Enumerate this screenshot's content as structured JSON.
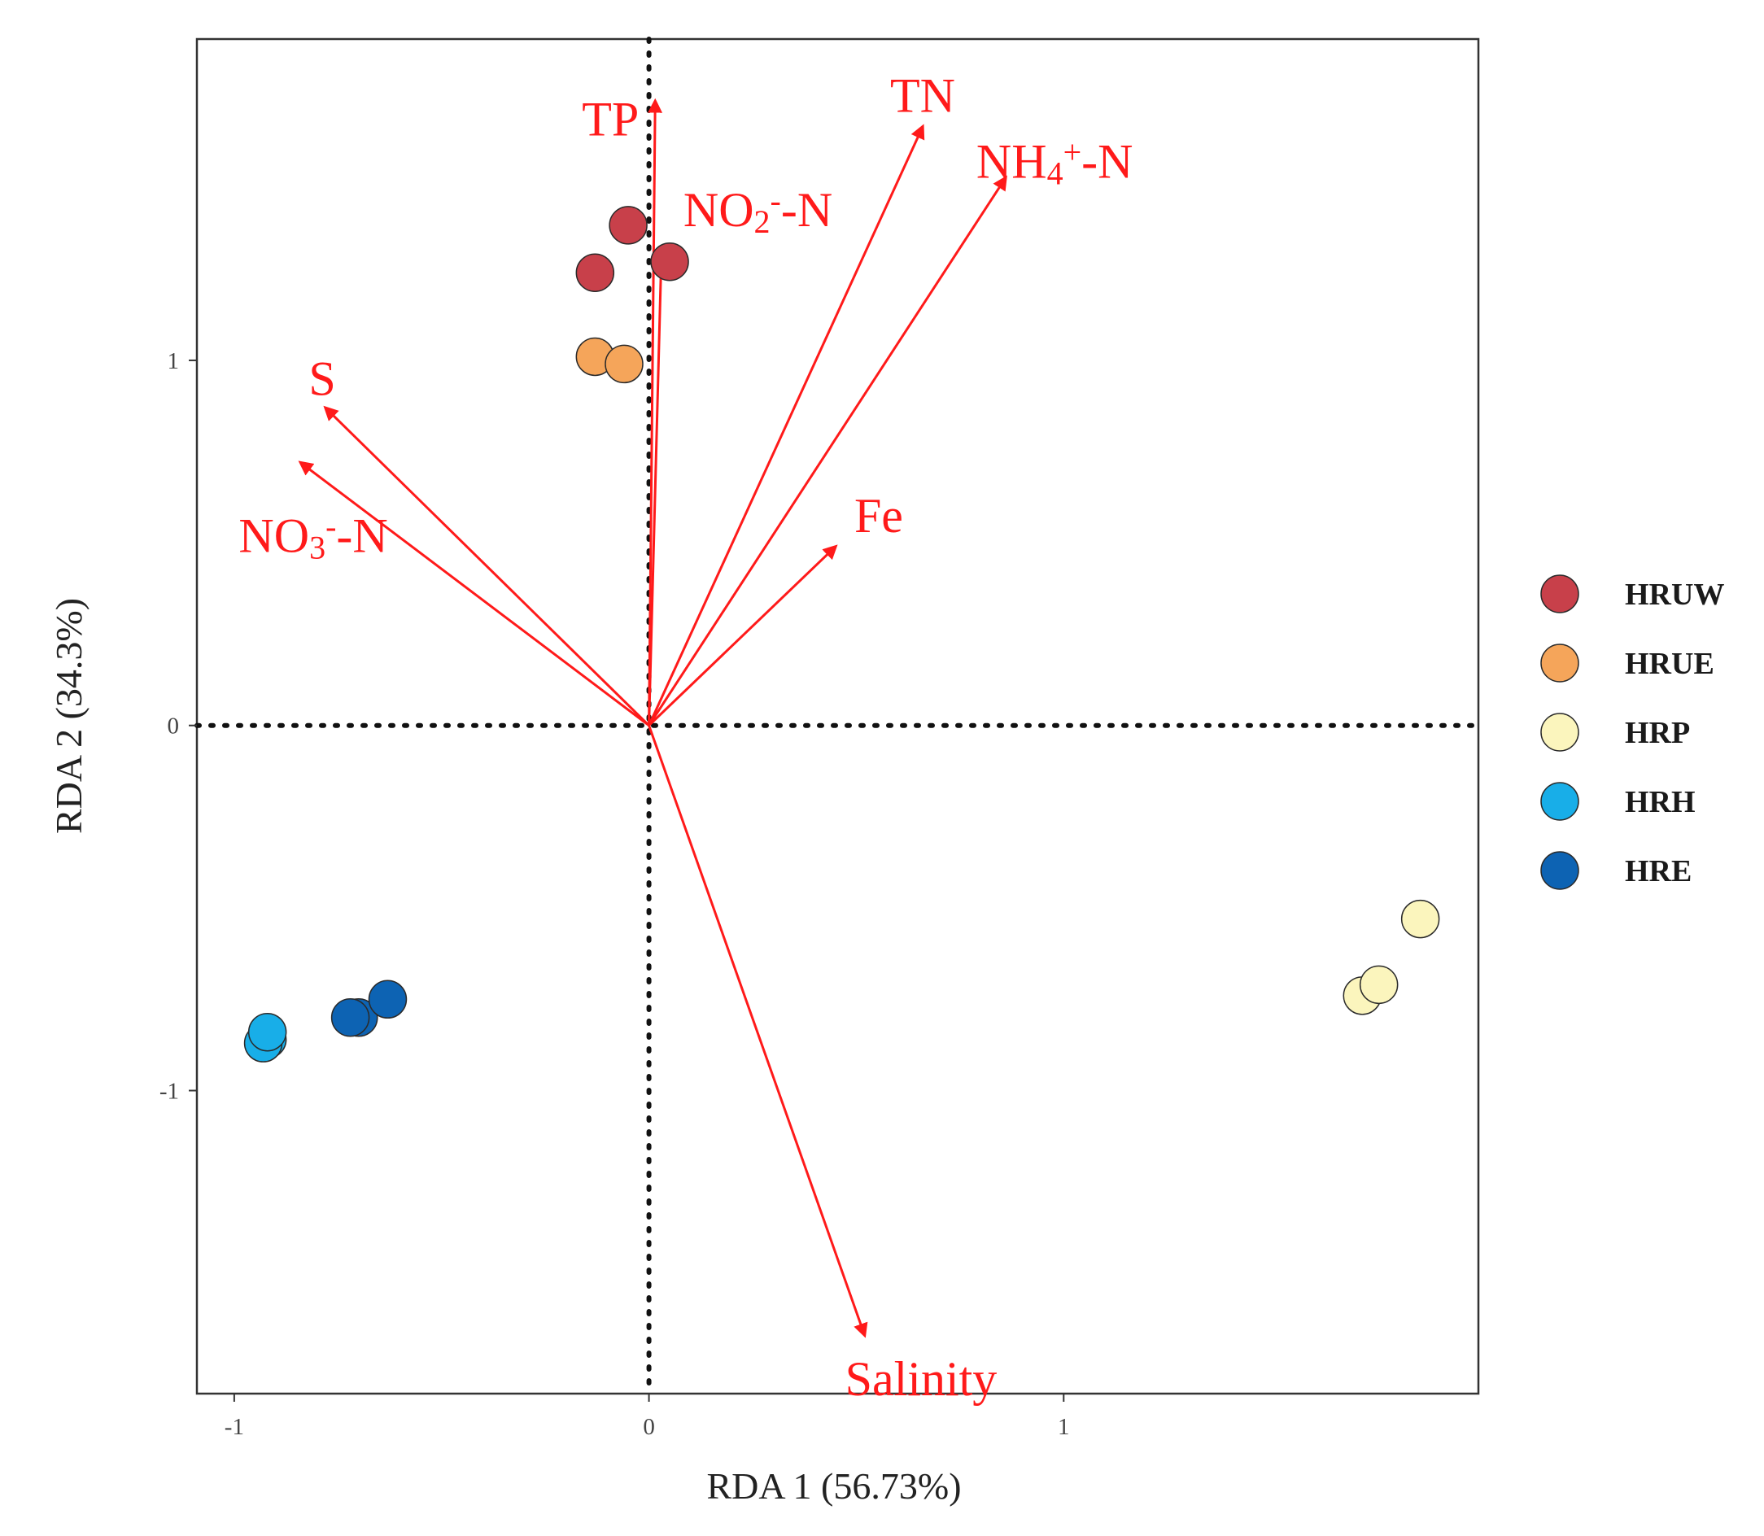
{
  "chart_data": {
    "type": "scatter",
    "subtype": "rda-biplot",
    "title": "",
    "xlabel": "RDA 1 (56.73%)",
    "ylabel": "RDA 2 (34.3%)",
    "xlim": [
      -1.09,
      2.0
    ],
    "ylim": [
      -1.83,
      1.88
    ],
    "xticks": [
      {
        "value": -1,
        "label": "-1"
      },
      {
        "value": 0,
        "label": "0"
      },
      {
        "value": 1,
        "label": "1"
      }
    ],
    "yticks": [
      {
        "value": -1,
        "label": "-1"
      },
      {
        "value": 0,
        "label": "0"
      },
      {
        "value": 1,
        "label": "1"
      }
    ],
    "grid": false,
    "reference_lines": {
      "x": 0,
      "y": 0,
      "style": "dotted"
    },
    "legend_position": "right",
    "series": [
      {
        "name": "HRUW",
        "color": "#c8404a",
        "points": [
          {
            "x": -0.05,
            "y": 1.37
          },
          {
            "x": -0.13,
            "y": 1.24
          },
          {
            "x": 0.05,
            "y": 1.27
          }
        ]
      },
      {
        "name": "HRUE",
        "color": "#f5a55a",
        "points": [
          {
            "x": -0.13,
            "y": 1.01
          },
          {
            "x": -0.06,
            "y": 0.99
          }
        ]
      },
      {
        "name": "HRP",
        "color": "#fbf5bd",
        "points": [
          {
            "x": 1.86,
            "y": -0.53
          },
          {
            "x": 1.72,
            "y": -0.74
          },
          {
            "x": 1.76,
            "y": -0.71
          }
        ]
      },
      {
        "name": "HRH",
        "color": "#18aee8",
        "points": [
          {
            "x": -0.92,
            "y": -0.86
          },
          {
            "x": -0.93,
            "y": -0.87
          },
          {
            "x": -0.92,
            "y": -0.84
          }
        ]
      },
      {
        "name": "HRE",
        "color": "#0d63b3",
        "points": [
          {
            "x": -0.7,
            "y": -0.8
          },
          {
            "x": -0.63,
            "y": -0.75
          },
          {
            "x": -0.72,
            "y": -0.8
          }
        ]
      }
    ],
    "vectors": [
      {
        "name": "TP",
        "label_main": "TP",
        "label_sub": "",
        "label_sup": "",
        "label_tail": "",
        "x": 0.015,
        "y": 1.71
      },
      {
        "name": "TN",
        "label_main": "TN",
        "label_sub": "",
        "label_sup": "",
        "label_tail": "",
        "x": 0.66,
        "y": 1.64
      },
      {
        "name": "NH4+-N",
        "label_main": "NH",
        "label_sub": "4",
        "label_sup": "+",
        "label_tail": "-N",
        "x": 0.86,
        "y": 1.5
      },
      {
        "name": "NO2--N",
        "label_main": "NO",
        "label_sub": "2",
        "label_sup": "-",
        "label_tail": "-N",
        "x": 0.03,
        "y": 1.29
      },
      {
        "name": "S",
        "label_main": "S",
        "label_sub": "",
        "label_sup": "",
        "label_tail": "",
        "x": -0.78,
        "y": 0.87
      },
      {
        "name": "NO3--N",
        "label_main": "NO",
        "label_sub": "3",
        "label_sup": "-",
        "label_tail": "-N",
        "x": -0.84,
        "y": 0.72
      },
      {
        "name": "Fe",
        "label_main": "Fe",
        "label_sub": "",
        "label_sup": "",
        "label_tail": "",
        "x": 0.45,
        "y": 0.49
      },
      {
        "name": "Salinity",
        "label_main": "Salinity",
        "label_sub": "",
        "label_sup": "",
        "label_tail": "",
        "x": 0.52,
        "y": -1.67
      }
    ],
    "vector_color": "#ff1a1a"
  }
}
